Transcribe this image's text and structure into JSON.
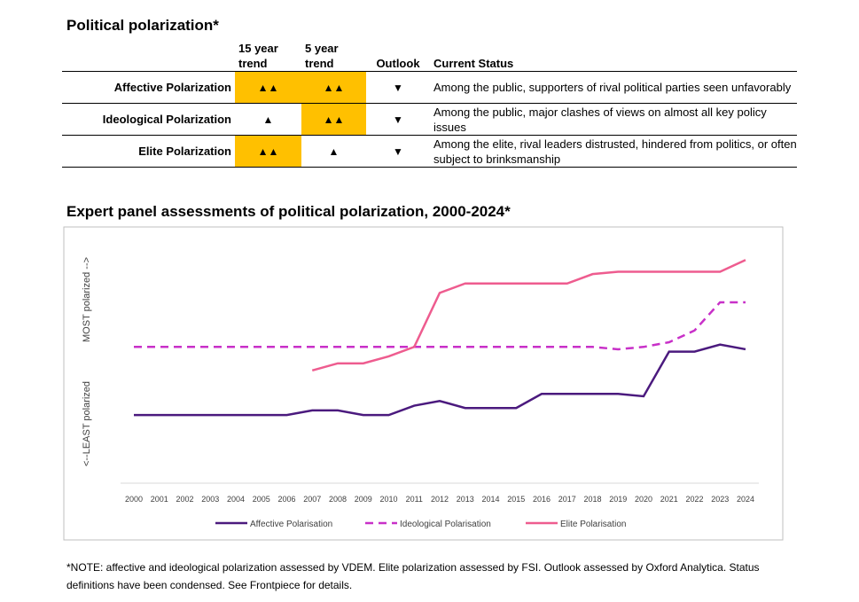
{
  "header": {
    "title": "Political polarization*"
  },
  "table": {
    "columns": [
      "15 year trend",
      "5 year trend",
      "Outlook",
      "Current Status"
    ],
    "highlight_color": "#FFC000",
    "rows": [
      {
        "label": "Affective Polarization",
        "cells": [
          "▲▲",
          "▲▲",
          "▼",
          "Among the public, supporters of rival political parties seen unfavorably"
        ],
        "highlight": [
          true,
          true,
          false,
          false
        ]
      },
      {
        "label": "Ideological Polarization",
        "cells": [
          "▲",
          "▲▲",
          "▼",
          "Among the public, major clashes of views on almost all key policy issues"
        ],
        "highlight": [
          false,
          true,
          false,
          false
        ]
      },
      {
        "label": "Elite Polarization",
        "cells": [
          "▲▲",
          "▲",
          "▼",
          "Among the elite, rival leaders distrusted, hindered from politics, or often subject to brinksmanship"
        ],
        "highlight": [
          true,
          false,
          false,
          false
        ]
      }
    ]
  },
  "chart_data": {
    "type": "line",
    "title": "Expert panel assessments of political polarization, 2000-2024*",
    "y_label_top": "MOST polarized -->",
    "y_label_bottom": "<--LEAST polarized",
    "categories": [
      "2000",
      "2001",
      "2002",
      "2003",
      "2004",
      "2005",
      "2006",
      "2007",
      "2008",
      "2009",
      "2010",
      "2011",
      "2012",
      "2013",
      "2014",
      "2015",
      "2016",
      "2017",
      "2018",
      "2019",
      "2020",
      "2021",
      "2022",
      "2023",
      "2024"
    ],
    "ylim": [
      0,
      100
    ],
    "series": [
      {
        "name": "Affective Polarisation",
        "color": "#4B1A7E",
        "dash": false,
        "values": [
          29,
          29,
          29,
          29,
          29,
          29,
          29,
          31,
          31,
          29,
          29,
          33,
          35,
          32,
          32,
          32,
          38,
          38,
          38,
          38,
          37,
          56,
          56,
          59,
          57
        ]
      },
      {
        "name": "Ideological Polarisation",
        "color": "#C830C8",
        "dash": true,
        "values": [
          58,
          58,
          58,
          58,
          58,
          58,
          58,
          58,
          58,
          58,
          58,
          58,
          58,
          58,
          58,
          58,
          58,
          58,
          58,
          57,
          58,
          60,
          65,
          77,
          77
        ]
      },
      {
        "name": "Elite Polarisation",
        "color": "#EE5C8F",
        "dash": false,
        "values": [
          null,
          null,
          null,
          null,
          null,
          null,
          null,
          48,
          51,
          51,
          54,
          58,
          81,
          85,
          85,
          85,
          85,
          85,
          89,
          90,
          90,
          90,
          90,
          90,
          95
        ]
      }
    ]
  },
  "note": "*NOTE: affective and ideological polarization assessed by VDEM. Elite polarization assessed by FSI. Outlook assessed by Oxford Analytica. Status definitions have been condensed. See Frontpiece for details."
}
